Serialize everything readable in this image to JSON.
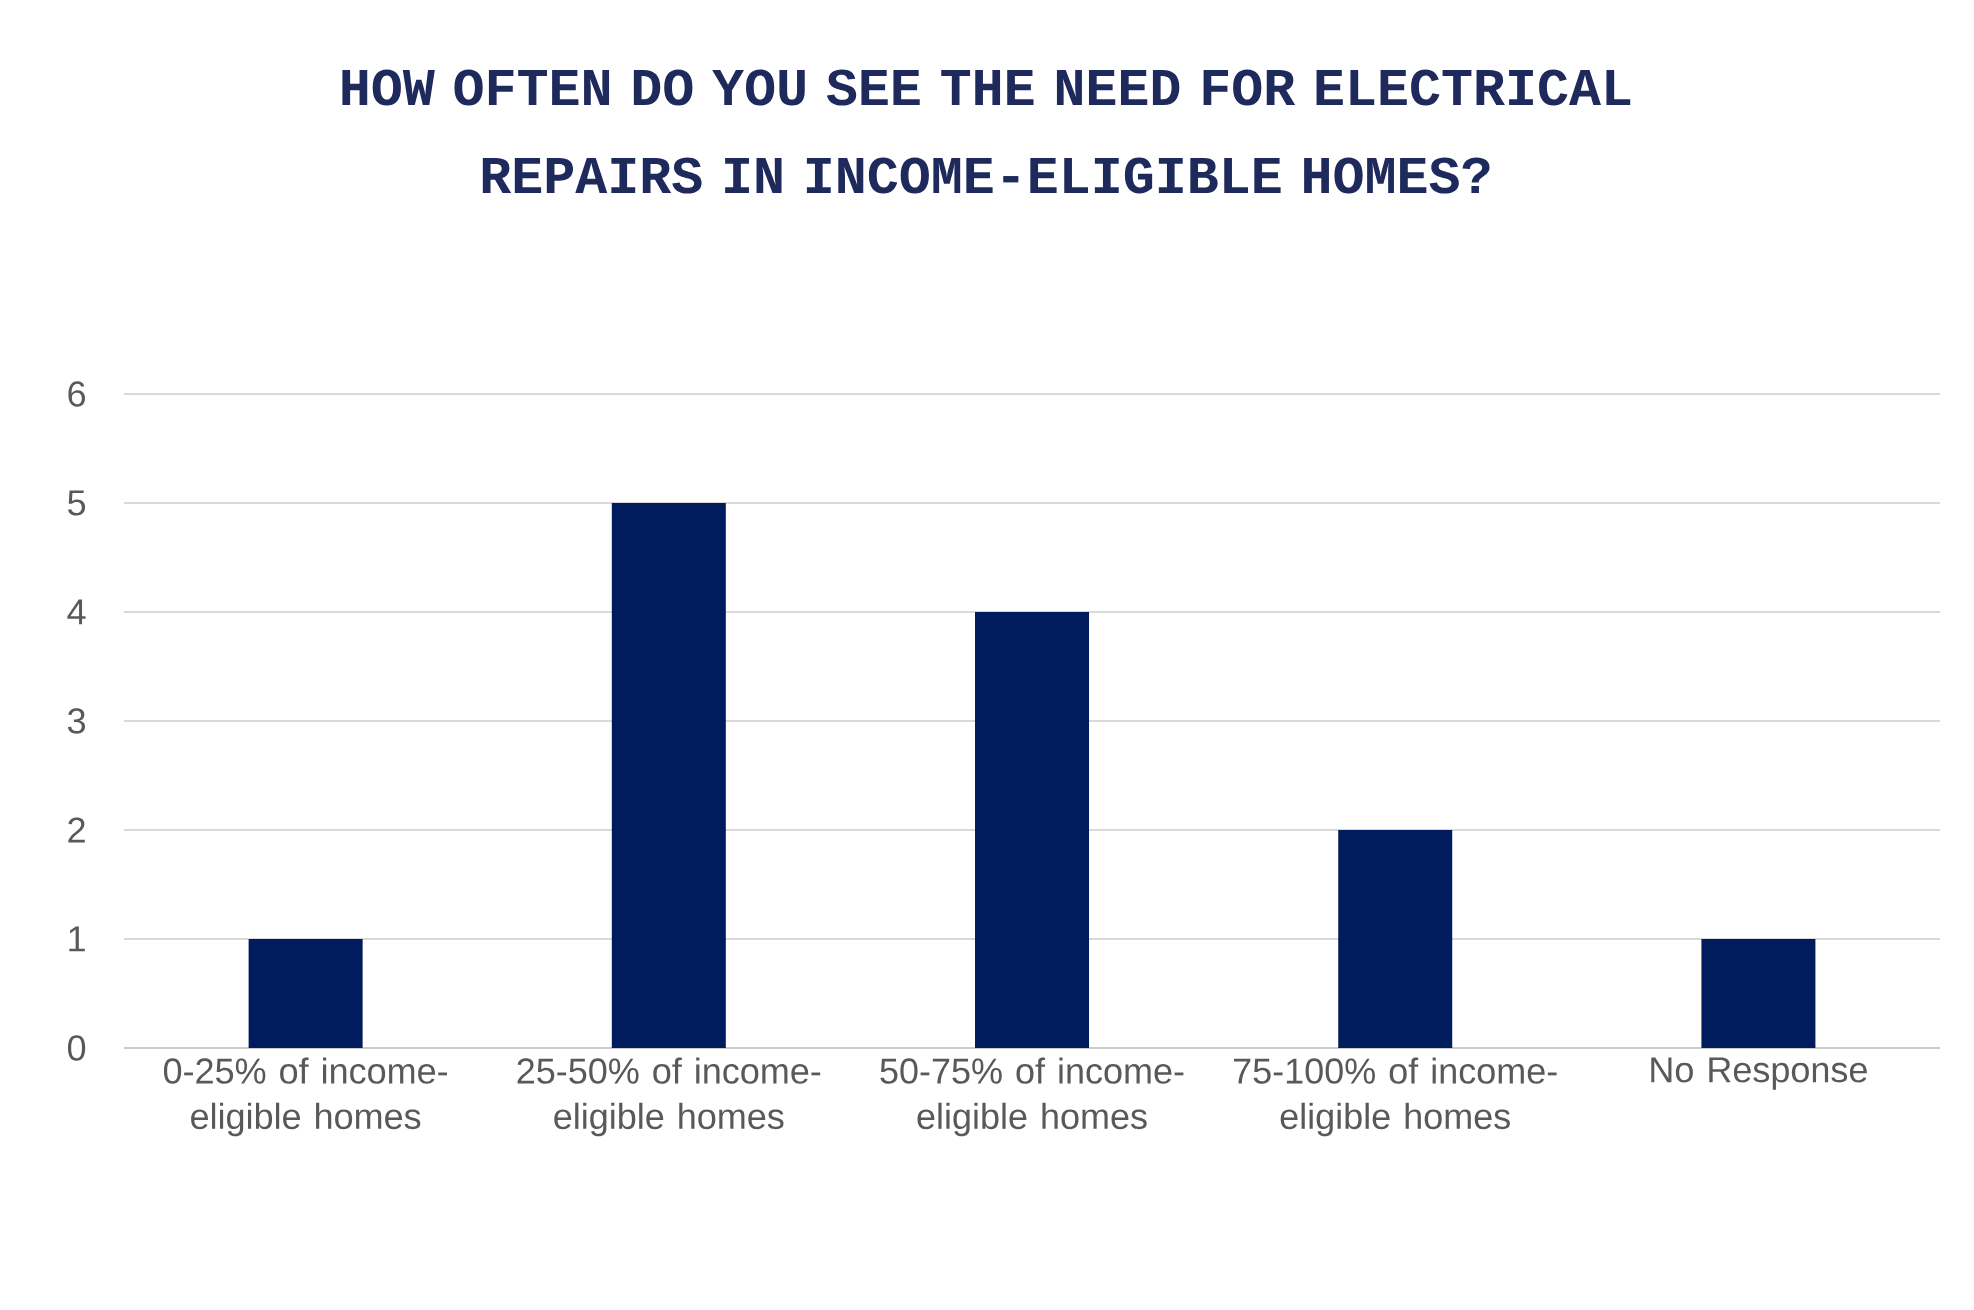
{
  "chart_data": {
    "type": "bar",
    "title": "HOW OFTEN DO YOU SEE THE NEED FOR ELECTRICAL REPAIRS IN INCOME-ELIGIBLE HOMES?",
    "categories": [
      "0-25% of income-eligible homes",
      "25-50% of income-eligible homes",
      "50-75% of income-eligible homes",
      "75-100% of income-eligible homes",
      "No Response"
    ],
    "values": [
      1,
      5,
      4,
      2,
      1
    ],
    "color": "#001c5c",
    "ylim": [
      0,
      6
    ],
    "yticks": [
      0,
      1,
      2,
      3,
      4,
      5,
      6
    ],
    "grid": "y"
  }
}
